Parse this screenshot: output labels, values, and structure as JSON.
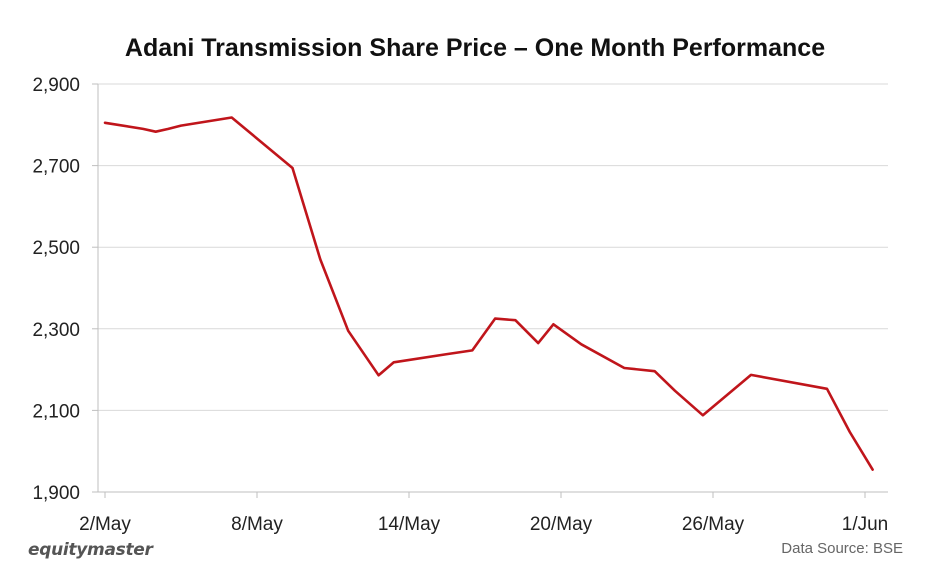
{
  "chart_data": {
    "type": "line",
    "title": "Adani Transmission Share Price – One Month Performance",
    "xlabel": "",
    "ylabel": "",
    "ylim": [
      1900,
      2900
    ],
    "yticks": [
      "2,900",
      "2,700",
      "2,500",
      "2,300",
      "2,100",
      "1,900"
    ],
    "ytick_values": [
      2900,
      2700,
      2500,
      2300,
      2100,
      1900
    ],
    "xticks": [
      "2/May",
      "8/May",
      "14/May",
      "20/May",
      "26/May",
      "1/Jun"
    ],
    "xtick_days": [
      2,
      8,
      14,
      20,
      26,
      32
    ],
    "xlim_days": [
      2,
      32
    ],
    "grid": true,
    "line_color": "#c0151b",
    "series": [
      {
        "x_days": [
          2,
          3.5,
          4,
          4.5,
          5,
          7,
          9.4,
          10.5,
          11.6,
          12.8,
          13.4,
          15.5,
          16.5,
          17.4,
          18.2,
          19.1,
          19.7,
          20.8,
          22.5,
          23.7,
          24.5,
          25.6,
          27.5,
          30.5,
          31.4,
          32.3
        ],
        "values": [
          2805,
          2790,
          2783,
          2790,
          2798,
          2818,
          2694,
          2470,
          2295,
          2186,
          2218,
          2238,
          2247,
          2325,
          2321,
          2265,
          2311,
          2262,
          2204,
          2196,
          2148,
          2088,
          2187,
          2153,
          2047,
          1955
        ]
      }
    ]
  },
  "footer": {
    "brand": "equitymaster",
    "source": "Data Source: BSE"
  }
}
